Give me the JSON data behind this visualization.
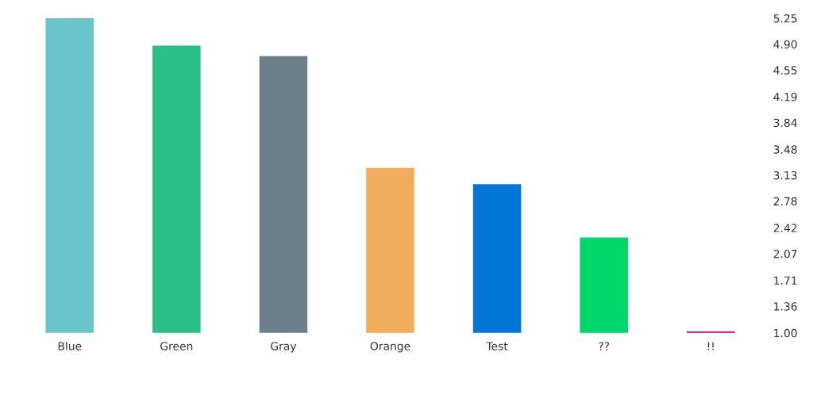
{
  "chart_data": {
    "type": "bar",
    "categories": [
      "Blue",
      "Green",
      "Gray",
      "Orange",
      "Test",
      "??",
      "!!"
    ],
    "values": [
      5.25,
      4.88,
      4.74,
      3.23,
      3.01,
      2.29,
      1.02
    ],
    "colors": [
      "#6bc3cb",
      "#2bbf88",
      "#6c7f8a",
      "#f0ad5c",
      "#0275d8",
      "#00d66a",
      "#d6006f"
    ],
    "ylim": [
      1.0,
      5.25
    ],
    "yticks": [
      {
        "value": 1.0,
        "label": "1.00"
      },
      1.36,
      1.71,
      2.07,
      2.42,
      2.78,
      3.13,
      3.48,
      3.84,
      4.19,
      4.55,
      {
        "value": 4.9,
        "label": "4.90"
      },
      5.25
    ],
    "grid": false,
    "legend": false
  }
}
